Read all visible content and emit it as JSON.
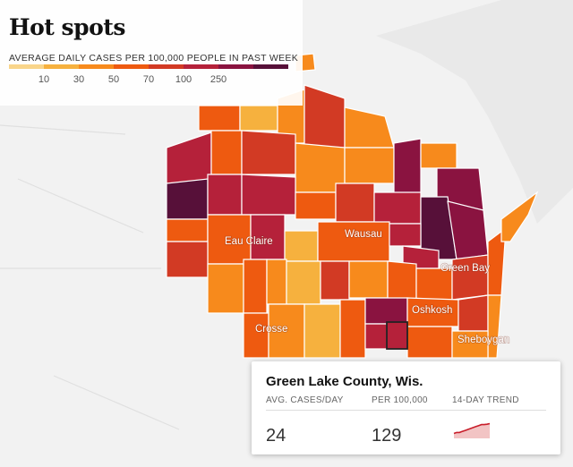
{
  "legend": {
    "title": "Hot spots",
    "subtitle": "AVERAGE DAILY CASES PER 100,000 PEOPLE IN PAST WEEK",
    "ticks": [
      "10",
      "30",
      "50",
      "70",
      "100",
      "250"
    ],
    "colors": [
      "#f9d58a",
      "#f6b13e",
      "#f78a1c",
      "#ee5a10",
      "#d23a24",
      "#b5213a",
      "#8a1340",
      "#571039"
    ]
  },
  "cities": {
    "eau_claire": "Eau Claire",
    "wausau": "Wausau",
    "green_bay": "Green Bay",
    "oshkosh": "Oshkosh",
    "la_crosse": "Crosse",
    "sheboygan": "Sheboygan"
  },
  "tooltip": {
    "title": "Green Lake County, Wis.",
    "col1_label": "AVG. CASES/DAY",
    "col2_label": "PER 100,000",
    "col3_label": "14-DAY TREND",
    "avg_cases_per_day": "24",
    "per_100k": "129",
    "trend_14day": [
      0.25,
      0.3,
      0.3,
      0.35,
      0.4,
      0.45,
      0.5,
      0.55,
      0.6,
      0.65,
      0.7,
      0.7,
      0.72,
      0.75
    ]
  }
}
